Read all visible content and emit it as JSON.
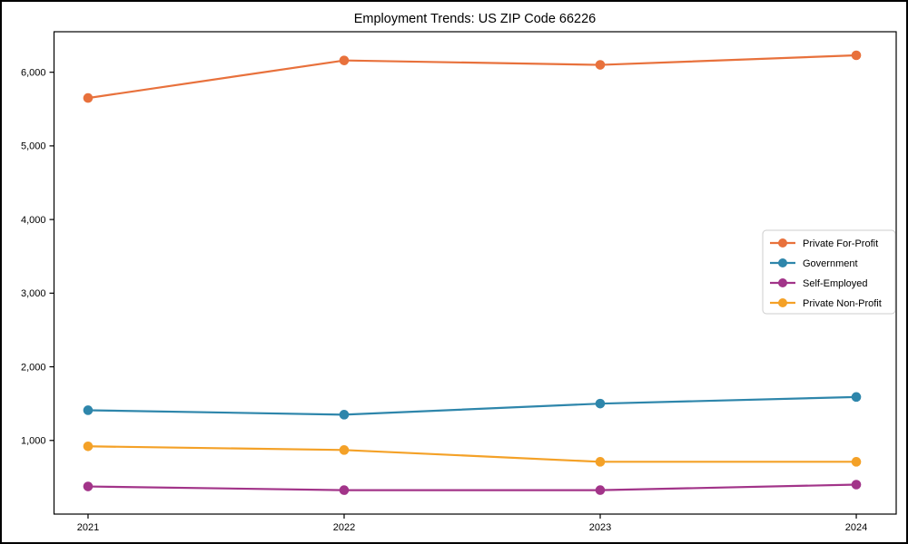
{
  "chart_data": {
    "type": "line",
    "title": "Employment Trends: US ZIP Code 66226",
    "xlabel": "",
    "ylabel": "",
    "x": [
      2021,
      2022,
      2023,
      2024
    ],
    "xtick_labels": [
      "2021",
      "2022",
      "2023",
      "2024"
    ],
    "yticks": [
      1000,
      2000,
      3000,
      4000,
      5000,
      6000
    ],
    "ytick_labels": [
      "1,000",
      "2,000",
      "3,000",
      "4,000",
      "5,000",
      "6,000"
    ],
    "ylim": [
      0,
      6550
    ],
    "grid": false,
    "legend_position": "center right",
    "series": [
      {
        "name": "Private For-Profit",
        "color": "#e8713c",
        "values": [
          5650,
          6160,
          6100,
          6230
        ]
      },
      {
        "name": "Government",
        "color": "#2e86ab",
        "values": [
          1410,
          1350,
          1500,
          1590
        ]
      },
      {
        "name": "Self-Employed",
        "color": "#a23489",
        "values": [
          375,
          325,
          325,
          400
        ]
      },
      {
        "name": "Private Non-Profit",
        "color": "#f4a127",
        "values": [
          920,
          870,
          710,
          710
        ]
      }
    ]
  }
}
